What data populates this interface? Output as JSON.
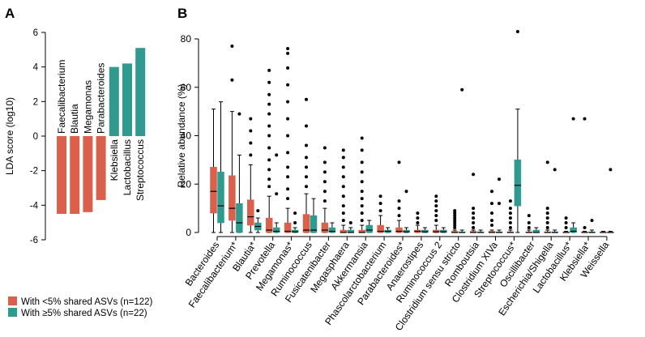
{
  "chart_data": [
    {
      "panel": "A",
      "type": "bar",
      "ylabel": "LDA score (log10)",
      "ylim": [
        -6,
        6
      ],
      "yticks": [
        6,
        4,
        2,
        0,
        -2,
        -4,
        -6
      ],
      "categories": [
        "Faecalibacterium",
        "Blautia",
        "Megamonas",
        "Parabacteroides",
        "Klebsiella",
        "Lactobacillus",
        "Streptococcus"
      ],
      "values": [
        -4.5,
        -4.5,
        -4.4,
        -3.7,
        4.0,
        4.2,
        5.1
      ],
      "colors": [
        "#d9604b",
        "#d9604b",
        "#d9604b",
        "#d9604b",
        "#2f9a8e",
        "#2f9a8e",
        "#2f9a8e"
      ]
    },
    {
      "panel": "B",
      "type": "boxplot",
      "ylabel": "Relative abundance (%)",
      "ylim": [
        0,
        80
      ],
      "yticks": [
        0,
        20,
        40,
        60,
        80
      ],
      "categories": [
        {
          "label": "Bacteroides",
          "color": "#000000"
        },
        {
          "label": "Faecalibacterium*",
          "color": "#c0392b"
        },
        {
          "label": "Blautia*",
          "color": "#c0392b"
        },
        {
          "label": "Prevotella",
          "color": "#000000"
        },
        {
          "label": "Megamonas*",
          "color": "#c0392b"
        },
        {
          "label": "Ruminococcus",
          "color": "#000000"
        },
        {
          "label": "Fusicatenibacter",
          "color": "#000000"
        },
        {
          "label": "Megasphaera",
          "color": "#000000"
        },
        {
          "label": "Akkermansia",
          "color": "#000000"
        },
        {
          "label": "Phascolarctobacterium",
          "color": "#000000"
        },
        {
          "label": "Parabacteroides*",
          "color": "#c0392b"
        },
        {
          "label": "Anaerostipes",
          "color": "#000000"
        },
        {
          "label": "Ruminococcus 2",
          "color": "#000000"
        },
        {
          "label": "Clostridium sensu stricto",
          "color": "#000000"
        },
        {
          "label": "Romboutsia",
          "color": "#000000"
        },
        {
          "label": "Clostridium XIVa",
          "color": "#000000"
        },
        {
          "label": "Streptococcus*",
          "color": "#1a8a7c"
        },
        {
          "label": "Oscillibacter",
          "color": "#000000"
        },
        {
          "label": "Escherichia/Shigella",
          "color": "#000000"
        },
        {
          "label": "Lactobacillus*",
          "color": "#1a8a7c"
        },
        {
          "label": "Klebsiella*",
          "color": "#1a8a7c"
        },
        {
          "label": "Weissella",
          "color": "#000000"
        }
      ],
      "series": [
        {
          "name": "With <5% shared ASVs (n=122)",
          "color": "#d9604b",
          "boxes": [
            {
              "lw": 0,
              "q1": 8,
              "med": 17,
              "q3": 27,
              "uw": 51,
              "out": []
            },
            {
              "lw": 0,
              "q1": 5,
              "med": 10,
              "q3": 23.5,
              "uw": 50,
              "out": [
                63,
                77
              ]
            },
            {
              "lw": 0,
              "q1": 3,
              "med": 6.5,
              "q3": 13.5,
              "uw": 28,
              "out": [
                32,
                37,
                42,
                47
              ]
            },
            {
              "lw": 0,
              "q1": 0,
              "med": 1,
              "q3": 6,
              "uw": 15,
              "out": [
                19,
                22,
                26,
                30,
                35,
                40,
                44,
                49,
                53,
                57,
                62,
                67
              ]
            },
            {
              "lw": 0,
              "q1": 0,
              "med": 0.5,
              "q3": 4,
              "uw": 10,
              "out": [
                14,
                18,
                23,
                27,
                33,
                40,
                47,
                54,
                61,
                68,
                74,
                76
              ]
            },
            {
              "lw": 0,
              "q1": 0,
              "med": 1,
              "q3": 7.5,
              "uw": 16,
              "out": [
                19,
                23,
                27,
                31,
                36,
                44,
                55
              ]
            },
            {
              "lw": 0,
              "q1": 0,
              "med": 1,
              "q3": 4,
              "uw": 10,
              "out": [
                13,
                17,
                21,
                25,
                29,
                35
              ]
            },
            {
              "lw": 0,
              "q1": 0,
              "med": 0,
              "q3": 1,
              "uw": 3,
              "out": [
                5,
                8,
                11,
                15,
                19,
                23,
                27,
                31,
                34
              ]
            },
            {
              "lw": 0,
              "q1": 0,
              "med": 0,
              "q3": 1,
              "uw": 3,
              "out": [
                5,
                8,
                11,
                14,
                17,
                21,
                25,
                29,
                34,
                39
              ]
            },
            {
              "lw": 0,
              "q1": 0,
              "med": 0.5,
              "q3": 3,
              "uw": 7,
              "out": [
                9,
                12,
                15
              ]
            },
            {
              "lw": 0,
              "q1": 0,
              "med": 0.5,
              "q3": 2,
              "uw": 5,
              "out": [
                7,
                10,
                13,
                29
              ]
            },
            {
              "lw": 0,
              "q1": 0,
              "med": 0.5,
              "q3": 1,
              "uw": 3,
              "out": [
                4,
                6,
                8
              ]
            },
            {
              "lw": 0,
              "q1": 0,
              "med": 0.3,
              "q3": 1,
              "uw": 3,
              "out": [
                5,
                7,
                9,
                11,
                13,
                15
              ]
            },
            {
              "lw": 0,
              "q1": 0,
              "med": 0,
              "q3": 0.5,
              "uw": 1,
              "out": [
                2,
                3,
                4,
                5,
                6,
                7,
                8,
                9
              ]
            },
            {
              "lw": 0,
              "q1": 0,
              "med": 0,
              "q3": 0.5,
              "uw": 1,
              "out": [
                2,
                4,
                6,
                8,
                10,
                24
              ]
            },
            {
              "lw": 0,
              "q1": 0,
              "med": 0,
              "q3": 0.5,
              "uw": 1,
              "out": [
                3,
                5,
                8,
                12,
                17
              ]
            },
            {
              "lw": 0,
              "q1": 0,
              "med": 0,
              "q3": 0.3,
              "uw": 1,
              "out": [
                2,
                4,
                6,
                8,
                10,
                13
              ]
            },
            {
              "lw": 0,
              "q1": 0,
              "med": 0,
              "q3": 0.3,
              "uw": 1,
              "out": [
                2,
                4,
                7
              ]
            },
            {
              "lw": 0,
              "q1": 0,
              "med": 0,
              "q3": 0.3,
              "uw": 1,
              "out": [
                2,
                4,
                6,
                8,
                10,
                29
              ]
            },
            {
              "lw": 0,
              "q1": 0,
              "med": 0,
              "q3": 0.2,
              "uw": 0.5,
              "out": [
                2,
                4,
                6
              ]
            },
            {
              "lw": 0,
              "q1": 0,
              "med": 0,
              "q3": 0.2,
              "uw": 0.5,
              "out": [
                2,
                47
              ]
            },
            {
              "lw": 0,
              "q1": 0,
              "med": 0,
              "q3": 0.2,
              "uw": 0.5,
              "out": []
            }
          ]
        },
        {
          "name": "With ≥5% shared ASVs (n=22)",
          "color": "#2f9a8e",
          "boxes": [
            {
              "lw": 0,
              "q1": 4,
              "med": 11,
              "q3": 25,
              "uw": 54,
              "out": []
            },
            {
              "lw": 0,
              "q1": 0,
              "med": 4,
              "q3": 12,
              "uw": 32,
              "out": [
                49
              ]
            },
            {
              "lw": 0,
              "q1": 1,
              "med": 2.5,
              "q3": 4,
              "uw": 6,
              "out": [
                9
              ]
            },
            {
              "lw": 0,
              "q1": 0,
              "med": 0.5,
              "q3": 2,
              "uw": 4,
              "out": [
                16,
                32
              ]
            },
            {
              "lw": 0,
              "q1": 0,
              "med": 0.3,
              "q3": 1,
              "uw": 2,
              "out": [
                4,
                8
              ]
            },
            {
              "lw": 0,
              "q1": 0,
              "med": 1,
              "q3": 7,
              "uw": 14,
              "out": []
            },
            {
              "lw": 0,
              "q1": 0,
              "med": 0.5,
              "q3": 2,
              "uw": 4,
              "out": []
            },
            {
              "lw": 0,
              "q1": 0,
              "med": 0,
              "q3": 1,
              "uw": 2,
              "out": [
                4
              ]
            },
            {
              "lw": 0,
              "q1": 0,
              "med": 1,
              "q3": 3,
              "uw": 5,
              "out": []
            },
            {
              "lw": 0,
              "q1": 0,
              "med": 0.5,
              "q3": 1,
              "uw": 2,
              "out": []
            },
            {
              "lw": 0,
              "q1": 0,
              "med": 0.3,
              "q3": 1,
              "uw": 2,
              "out": [
                17
              ]
            },
            {
              "lw": 0,
              "q1": 0,
              "med": 0.3,
              "q3": 1,
              "uw": 2,
              "out": []
            },
            {
              "lw": 0,
              "q1": 0,
              "med": 0.3,
              "q3": 1,
              "uw": 2,
              "out": []
            },
            {
              "lw": 0,
              "q1": 0,
              "med": 0,
              "q3": 0.3,
              "uw": 1,
              "out": [
                59
              ]
            },
            {
              "lw": 0,
              "q1": 0,
              "med": 0,
              "q3": 0.3,
              "uw": 1,
              "out": []
            },
            {
              "lw": 0,
              "q1": 0,
              "med": 0,
              "q3": 0.3,
              "uw": 1,
              "out": [
                12,
                22
              ]
            },
            {
              "lw": 0,
              "q1": 11,
              "med": 19.5,
              "q3": 30,
              "uw": 51,
              "out": [
                83
              ]
            },
            {
              "lw": 0,
              "q1": 0,
              "med": 0,
              "q3": 1,
              "uw": 2,
              "out": []
            },
            {
              "lw": 0,
              "q1": 0,
              "med": 0,
              "q3": 0.3,
              "uw": 1,
              "out": [
                26
              ]
            },
            {
              "lw": 0,
              "q1": 0,
              "med": 0.5,
              "q3": 2,
              "uw": 4,
              "out": [
                47
              ]
            },
            {
              "lw": 0,
              "q1": 0,
              "med": 0,
              "q3": 0.3,
              "uw": 1,
              "out": [
                5
              ]
            },
            {
              "lw": 0,
              "q1": 0,
              "med": 0,
              "q3": 0.2,
              "uw": 0.5,
              "out": [
                26
              ]
            }
          ]
        }
      ]
    }
  ],
  "panel_labels": {
    "a": "A",
    "b": "B"
  },
  "legend": {
    "items": [
      {
        "label": "With <5% shared ASVs (n=122)",
        "color": "#d9604b"
      },
      {
        "label": "With ≥5% shared ASVs (n=22)",
        "color": "#2f9a8e"
      }
    ]
  }
}
